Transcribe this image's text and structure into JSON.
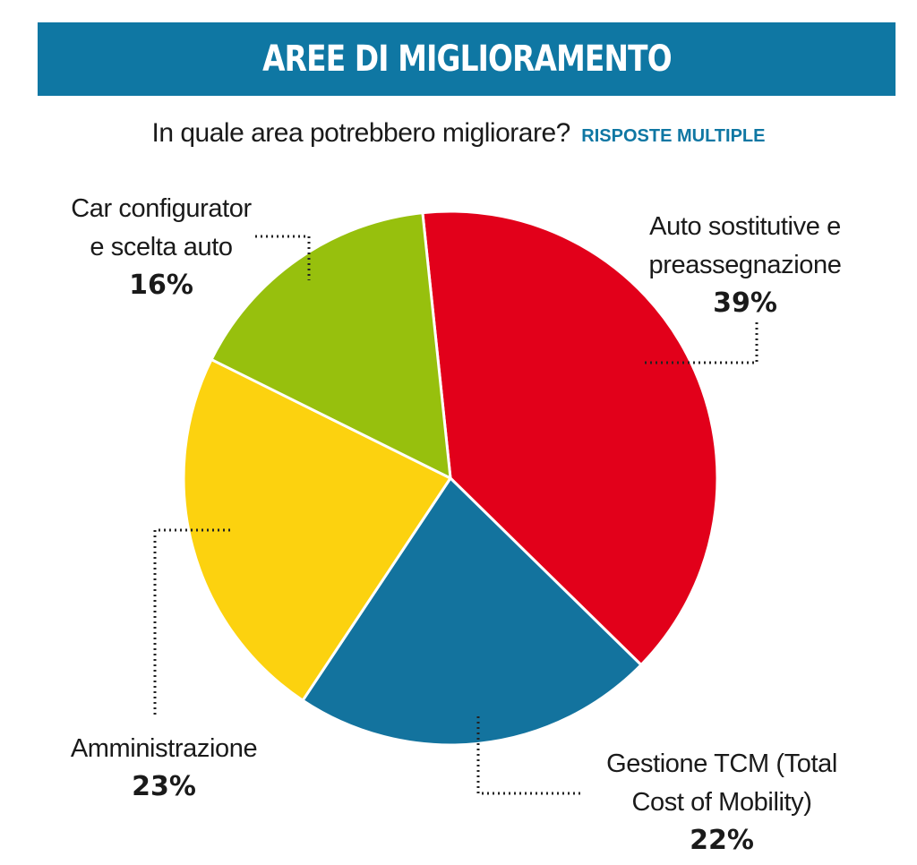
{
  "header": {
    "title": "AREE DI MIGLIORAMENTO",
    "subtitle": "In quale area potrebbero migliorare?",
    "subtitle_note": "RISPOSTE MULTIPLE"
  },
  "chart_data": {
    "type": "pie",
    "title": "AREE DI MIGLIORAMENTO",
    "subtitle": "In quale area potrebbero migliorare?",
    "note": "RISPOSTE MULTIPLE",
    "unit": "%",
    "slices": [
      {
        "label_lines": [
          "Auto sostitutive e",
          "preassegnazione"
        ],
        "value": 39,
        "value_label": "39%",
        "color": "#e2001a"
      },
      {
        "label_lines": [
          "Gestione TCM (Total",
          "Cost of Mobility)"
        ],
        "value": 22,
        "value_label": "22%",
        "color": "#13739e"
      },
      {
        "label_lines": [
          "Amministrazione"
        ],
        "value": 23,
        "value_label": "23%",
        "color": "#fcd20f"
      },
      {
        "label_lines": [
          "Car configurator",
          "e scelta auto"
        ],
        "value": 16,
        "value_label": "16%",
        "color": "#97c00d"
      }
    ]
  }
}
